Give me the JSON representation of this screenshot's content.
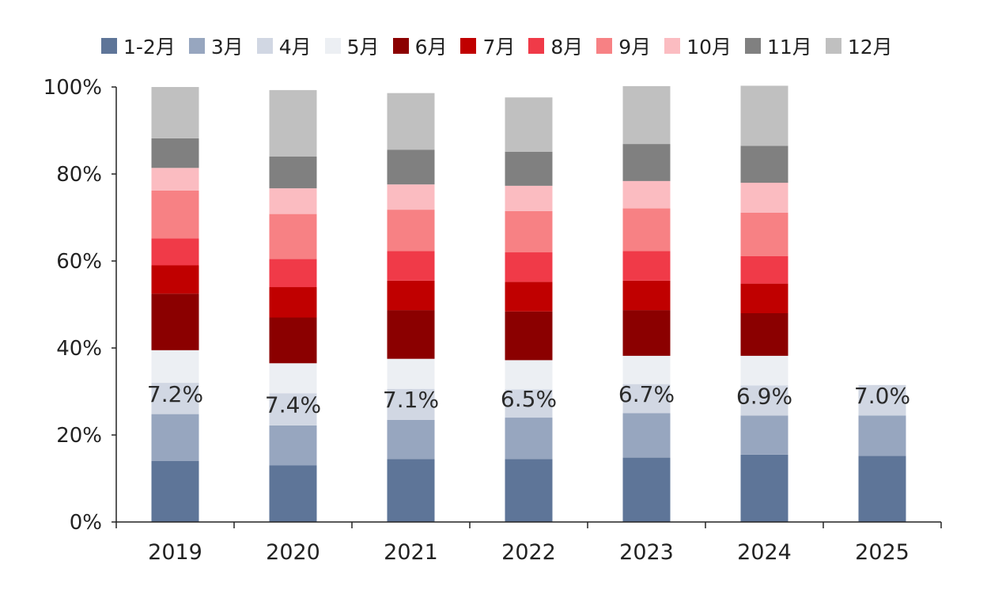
{
  "chart_data": {
    "type": "bar",
    "stacked": true,
    "categories": [
      "2019",
      "2020",
      "2021",
      "2022",
      "2023",
      "2024",
      "2025"
    ],
    "ylim": [
      0,
      100
    ],
    "yticks": [
      "0%",
      "20%",
      "40%",
      "60%",
      "80%",
      "100%"
    ],
    "legend_position": "top",
    "grid": false,
    "series": [
      {
        "name": "1-2月",
        "color": "#5e7598",
        "values": [
          14,
          13,
          14.5,
          14.5,
          14.8,
          15.5,
          15.2
        ]
      },
      {
        "name": "3月",
        "color": "#97a6bf",
        "values": [
          10.8,
          9.2,
          9.0,
          9.5,
          10.2,
          9.0,
          9.3
        ]
      },
      {
        "name": "4月",
        "color": "#d1d7e3",
        "values": [
          7.2,
          7.4,
          7.1,
          6.5,
          6.7,
          6.9,
          7.0
        ]
      },
      {
        "name": "5月",
        "color": "#eceff3",
        "values": [
          7.5,
          6.9,
          6.9,
          6.7,
          6.5,
          6.8,
          0
        ]
      },
      {
        "name": "6月",
        "color": "#8b0000",
        "values": [
          13,
          10.5,
          11.2,
          11.2,
          10.5,
          9.8,
          0
        ]
      },
      {
        "name": "7月",
        "color": "#c00000",
        "values": [
          6.5,
          7.0,
          6.8,
          6.8,
          6.8,
          6.8,
          0
        ]
      },
      {
        "name": "8月",
        "color": "#f03a48",
        "values": [
          6.2,
          6.5,
          6.8,
          6.8,
          6.8,
          6.3,
          0
        ]
      },
      {
        "name": "9月",
        "color": "#f78184",
        "values": [
          11,
          10.3,
          9.5,
          9.5,
          9.8,
          10.0,
          0
        ]
      },
      {
        "name": "10月",
        "color": "#fbbcc1",
        "values": [
          5.2,
          5.9,
          5.8,
          5.8,
          6.3,
          6.9,
          0
        ]
      },
      {
        "name": "11月",
        "color": "#808080",
        "values": [
          6.8,
          7.3,
          8.0,
          7.8,
          8.5,
          8.5,
          0
        ]
      },
      {
        "name": "12月",
        "color": "#c0c0c0",
        "values": [
          11.8,
          15.3,
          13.0,
          12.5,
          13.3,
          13.8,
          0
        ]
      }
    ],
    "annotations": [
      {
        "category": "2019",
        "series": "4月",
        "text": "7.2%"
      },
      {
        "category": "2020",
        "series": "4月",
        "text": "7.4%"
      },
      {
        "category": "2021",
        "series": "4月",
        "text": "7.1%"
      },
      {
        "category": "2022",
        "series": "4月",
        "text": "6.5%"
      },
      {
        "category": "2023",
        "series": "4月",
        "text": "6.7%"
      },
      {
        "category": "2024",
        "series": "4月",
        "text": "6.9%"
      },
      {
        "category": "2025",
        "series": "4月",
        "text": "7.0%"
      }
    ]
  }
}
